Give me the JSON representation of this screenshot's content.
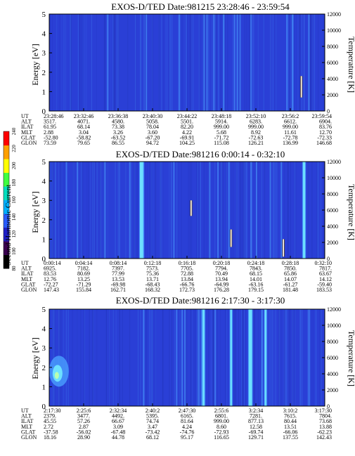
{
  "colors": {
    "background_field": "#2a3fd6",
    "streak_light": "#4aa0ff",
    "streak_bright": "#6de0ff",
    "streak_dark": "#1a2aa0",
    "white_trace": "#ffffff"
  },
  "colorbar": {
    "label": "Second Harmonic Current",
    "ticks": [
      "80",
      "100",
      "120",
      "140",
      "160",
      "180",
      "200",
      "220",
      "240"
    ],
    "colors": [
      "#000000",
      "#3a0050",
      "#2020c8",
      "#2a5cff",
      "#00b0ff",
      "#00e0c0",
      "#40ff40",
      "#ffff00",
      "#ffa000",
      "#ff0000"
    ]
  },
  "chart_data": [
    {
      "type": "heatmap",
      "title": "EXOS-D/TED   Date:981215  23:28:46 - 23:59:54",
      "ylabel": "Energy [eV]",
      "ylabel_right": "Temperature [K]",
      "y_ticks": [
        "0",
        "1",
        "2",
        "3",
        "4",
        "5"
      ],
      "ylim": [
        0,
        5
      ],
      "y_right_ticks": [
        "0",
        "2000",
        "4000",
        "6000",
        "8000",
        "10000",
        "12000"
      ],
      "y_right_lim": [
        0,
        12000
      ],
      "ephemeris": [
        {
          "label": "UT",
          "values": [
            "23:28:46",
            "23:32:46",
            "23:36:38",
            "23:40:30",
            "23:44:22",
            "23:48:18",
            "23:52:10",
            "23:56:2",
            "23:59:54"
          ]
        },
        {
          "label": "ALT",
          "values": [
            "3517.",
            "4071.",
            "4580.",
            "5058.",
            "5501.",
            "5914.",
            "6283.",
            "6612.",
            "6904."
          ]
        },
        {
          "label": "ILAT",
          "values": [
            "61.95",
            "68.14",
            "73.38",
            "78.04",
            "82.20",
            "999.00",
            "999.00",
            "999.00",
            "83.76"
          ]
        },
        {
          "label": "MLT",
          "values": [
            "2.88",
            "3.04",
            "3.26",
            "3.60",
            "4.22",
            "5.68",
            "8.92",
            "11.61",
            "12.70"
          ]
        },
        {
          "label": "GLAT",
          "values": [
            "-52.80",
            "-58.82",
            "-63.52",
            "-67.20",
            "-69.91",
            "-71.72",
            "-72.63",
            "-72.78",
            "-72.33"
          ]
        },
        {
          "label": "GLON",
          "values": [
            "73.59",
            "79.65",
            "86.55",
            "94.72",
            "104.25",
            "115.08",
            "126.21",
            "136.99",
            "146.68"
          ]
        }
      ],
      "streaks_x": [
        0.21,
        0.35,
        0.47,
        0.56,
        0.57,
        0.595,
        0.63,
        0.67,
        0.68,
        0.69,
        0.73,
        0.86,
        0.88,
        0.94
      ],
      "white_traces": [
        {
          "x": 0.915,
          "y0": 0.7,
          "y1": 1.8
        }
      ]
    },
    {
      "type": "heatmap",
      "title": "EXOS-D/TED   Date:981216  0:00:14 - 0:32:10",
      "ylabel": "Energy [eV]",
      "ylabel_right": "Temperature [K]",
      "y_ticks": [
        "0",
        "1",
        "2",
        "3",
        "4",
        "5"
      ],
      "ylim": [
        0,
        5
      ],
      "y_right_ticks": [
        "0",
        "2000",
        "4000",
        "6000",
        "8000",
        "10000",
        "12000"
      ],
      "y_right_lim": [
        0,
        12000
      ],
      "ephemeris": [
        {
          "label": "UT",
          "values": [
            "0:00:14",
            "0:04:14",
            "0:08:14",
            "0:12:18",
            "0:16:18",
            "0:20:18",
            "0:24:18",
            "0:28:18",
            "0:32:10"
          ]
        },
        {
          "label": "ALT",
          "values": [
            "6925.",
            "7182.",
            "7397.",
            "7573.",
            "7705.",
            "7794.",
            "7843.",
            "7850.",
            "7817."
          ]
        },
        {
          "label": "ILAT",
          "values": [
            "83.53",
            "80.69",
            "77.99",
            "75.36",
            "72.88",
            "70.49",
            "68.15",
            "65.86",
            "63.67"
          ]
        },
        {
          "label": "MLT",
          "values": [
            "12.76",
            "13.25",
            "13.53",
            "13.71",
            "13.84",
            "13.94",
            "14.01",
            "14.07",
            "14.12"
          ]
        },
        {
          "label": "GLAT",
          "values": [
            "-72.27",
            "-71.29",
            "-69.98",
            "-68.43",
            "-66.76",
            "-64.99",
            "-63.16",
            "-61.27",
            "-59.40"
          ]
        },
        {
          "label": "GLON",
          "values": [
            "147.43",
            "155.84",
            "162.71",
            "168.32",
            "172.73",
            "176.28",
            "179.15",
            "181.48",
            "183.53"
          ]
        }
      ],
      "streaks_x": [
        0.06,
        0.1,
        0.2,
        0.29,
        0.34,
        0.45,
        0.58,
        0.61,
        0.65,
        0.73,
        0.75,
        0.8,
        0.84
      ],
      "bright_streaks": [
        {
          "x": 0.335,
          "y0": 0,
          "y1": 5,
          "w": 0.012
        },
        {
          "x": 0.925,
          "y0": 0,
          "y1": 5,
          "w": 0.008
        }
      ],
      "white_traces": [
        {
          "x": 0.515,
          "y0": 2.2,
          "y1": 3.0
        },
        {
          "x": 0.66,
          "y0": 0.6,
          "y1": 1.5
        },
        {
          "x": 0.85,
          "y0": 0.1,
          "y1": 1.0
        }
      ]
    },
    {
      "type": "heatmap",
      "title": "EXOS-D/TED   Date:981216  2:17:30 - 3:17:30",
      "ylabel": "Energy [eV]",
      "ylabel_right": "Temperature [K]",
      "y_ticks": [
        "0",
        "1",
        "2",
        "3",
        "4",
        "5"
      ],
      "ylim": [
        0,
        5
      ],
      "y_right_ticks": [
        "0",
        "2000",
        "4000",
        "6000",
        "8000",
        "10000",
        "12000"
      ],
      "y_right_lim": [
        0,
        12000
      ],
      "ephemeris": [
        {
          "label": "UT",
          "values": [
            "2:17:30",
            "2:25:6",
            "2:32:34",
            "2:40:2",
            "2:47:30",
            "2:55:6",
            "3:2:34",
            "3:10:2",
            "3:17:30"
          ]
        },
        {
          "label": "ALT",
          "values": [
            "2379.",
            "3477.",
            "4492.",
            "5395.",
            "6165.",
            "6801.",
            "7281.",
            "7615.",
            "7804."
          ]
        },
        {
          "label": "ILAT",
          "values": [
            "45.55",
            "57.26",
            "66.67",
            "74.74",
            "81.64",
            "999.00",
            "877.13",
            "80.44",
            "73.68"
          ]
        },
        {
          "label": "MLT",
          "values": [
            "2.72",
            "2.87",
            "3.09",
            "3.47",
            "4.24",
            "8.60",
            "12.58",
            "13.51",
            "13.88"
          ]
        },
        {
          "label": "GLAT",
          "values": [
            "-37.58",
            "-56.02",
            "-67.48",
            "-73.42",
            "-74.76",
            "-72.93",
            "-69.74",
            "-66.06",
            "-62.23"
          ]
        },
        {
          "label": "GLON",
          "values": [
            "18.16",
            "28.90",
            "44.78",
            "68.12",
            "95.17",
            "116.65",
            "129.71",
            "137.55",
            "142.43"
          ]
        }
      ],
      "streaks_x": [
        0.34,
        0.46,
        0.48,
        0.49,
        0.54,
        0.55,
        0.6,
        0.66,
        0.77,
        0.94
      ],
      "bright_streaks": [
        {
          "x": 0.56,
          "y0": 0,
          "y1": 5,
          "w": 0.007
        },
        {
          "x": 0.66,
          "y0": 0,
          "y1": 5,
          "w": 0.006
        },
        {
          "x": 0.73,
          "y0": 0,
          "y1": 5,
          "w": 0.012
        },
        {
          "x": 0.785,
          "y0": 0,
          "y1": 5,
          "w": 0.006
        }
      ],
      "hot_spot": {
        "x": 0.02,
        "y": 1.8
      }
    }
  ]
}
